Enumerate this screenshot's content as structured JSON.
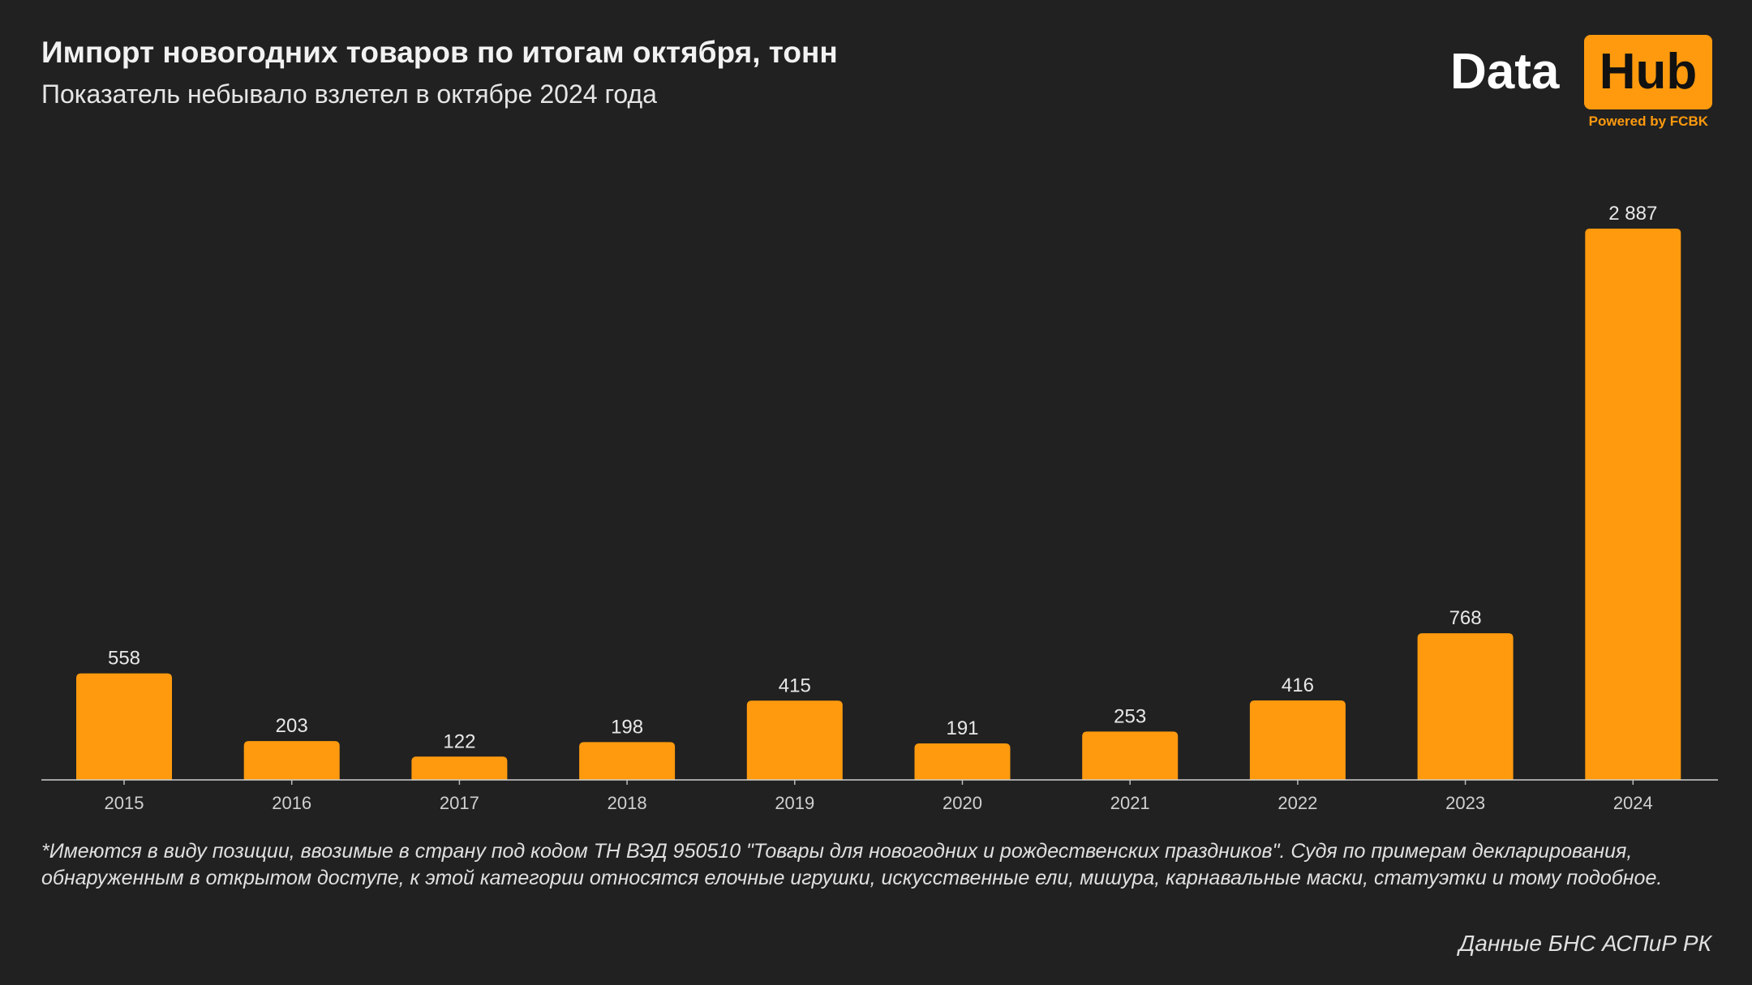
{
  "chart_data": {
    "type": "bar",
    "title": "Импорт новогодних товаров по итогам октября, тонн",
    "subtitle": "Показатель небывало взлетел в октябре 2024 года",
    "categories": [
      "2015",
      "2016",
      "2017",
      "2018",
      "2019",
      "2020",
      "2021",
      "2022",
      "2023",
      "2024"
    ],
    "values": [
      558,
      203,
      122,
      198,
      415,
      191,
      253,
      416,
      768,
      2887
    ],
    "data_labels": [
      "558",
      "203",
      "122",
      "198",
      "415",
      "191",
      "253",
      "416",
      "768",
      "2 887"
    ],
    "xlabel": "",
    "ylabel": "",
    "ylim": [
      0,
      2887
    ],
    "grid": false,
    "bar_color": "#ff9a0e",
    "background": "#212121"
  },
  "logo": {
    "word1": "Data",
    "word2": "Hub",
    "tagline": "Powered by FCBK"
  },
  "footnote": "*Имеются в виду позиции, ввозимые в страну под кодом ТН ВЭД 950510 \"Товары для новогодних и рождественских праздников\". Судя по примерам декларирования, обнаруженным в открытом доступе, к этой категории относятся елочные игрушки, искусственные ели, мишура, карнавальные маски, статуэтки и тому подобное.",
  "source": "Данные БНС АСПиР РК"
}
